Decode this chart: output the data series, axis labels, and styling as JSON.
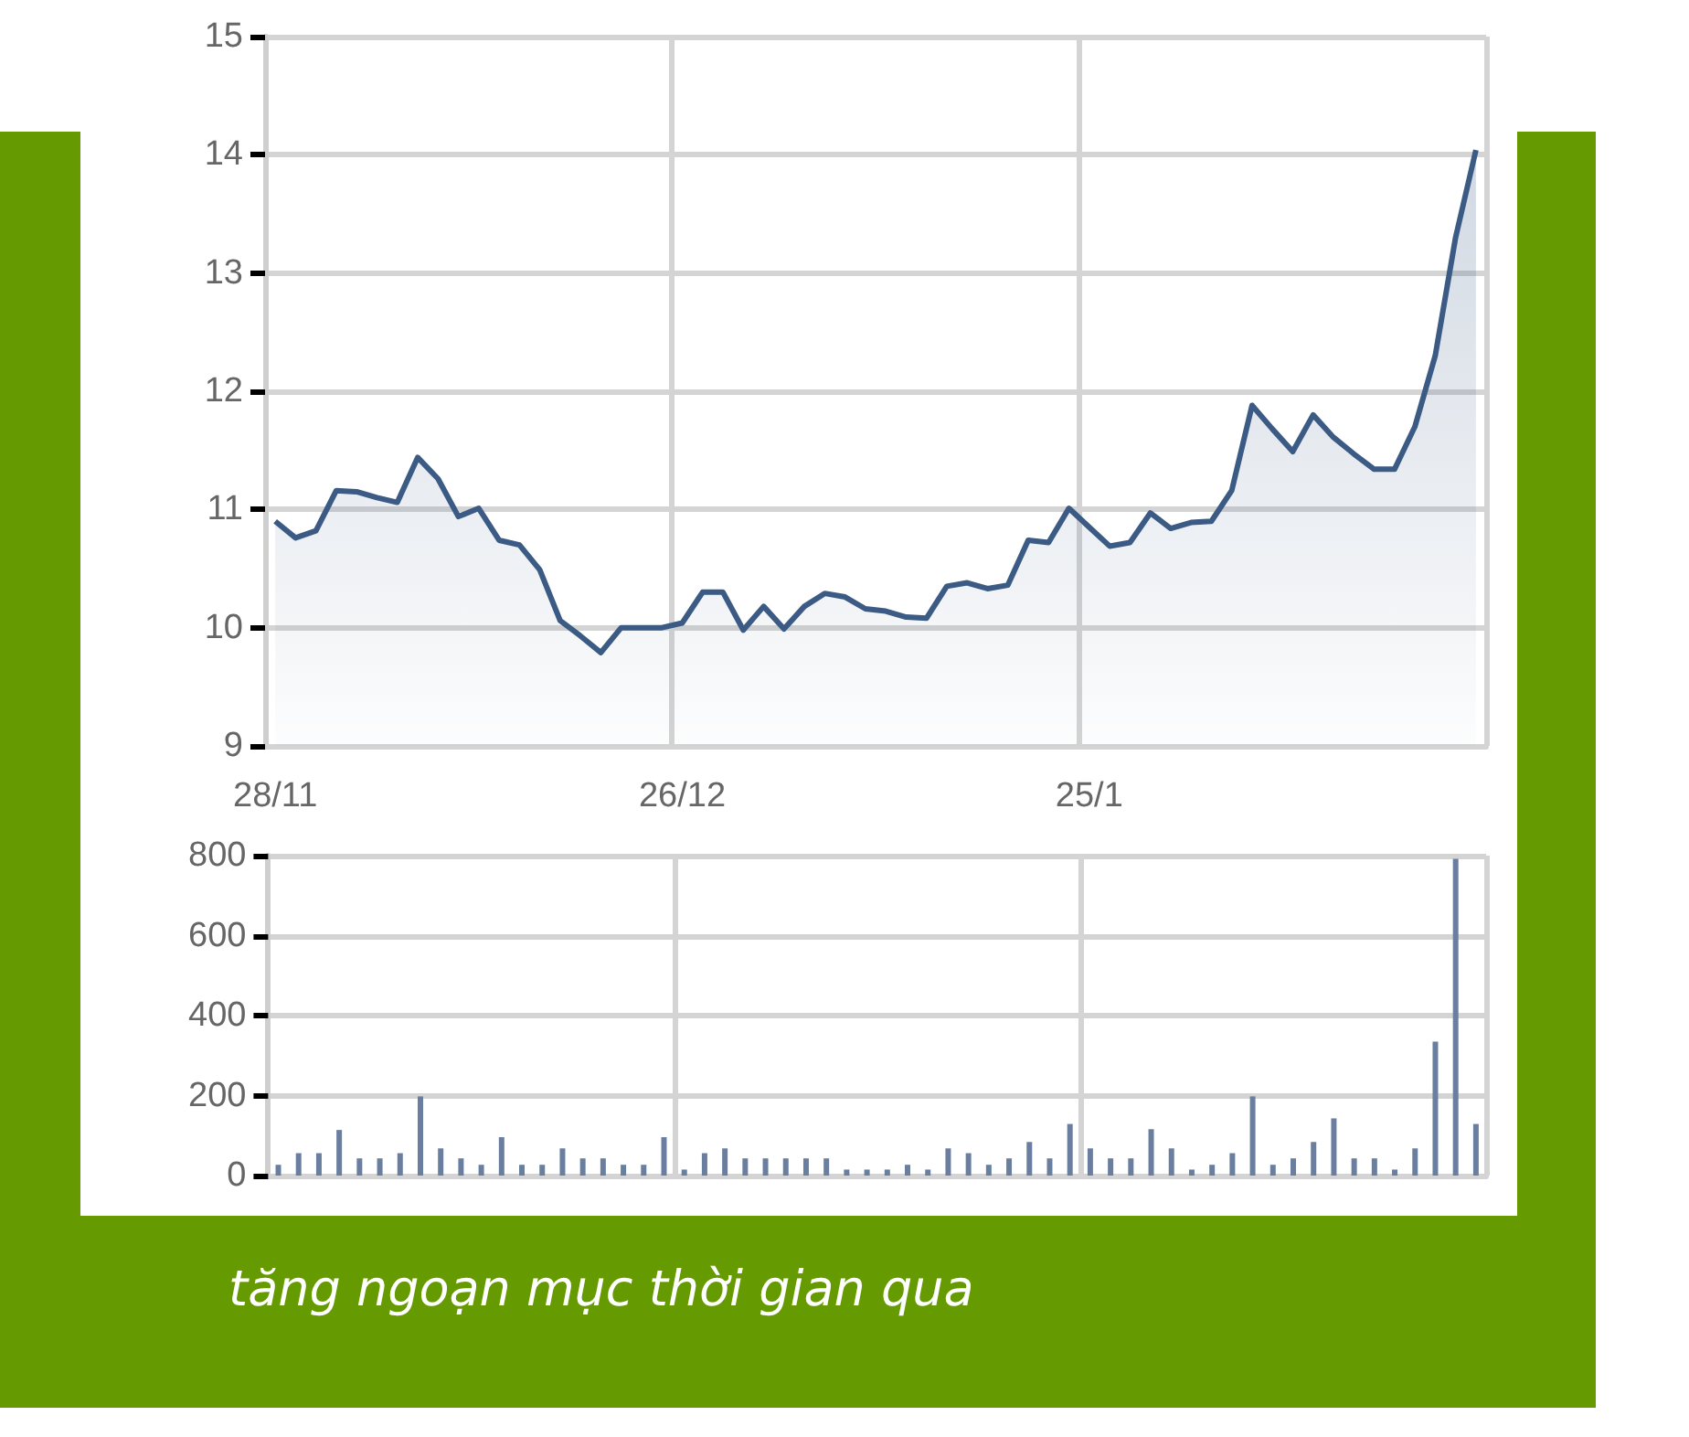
{
  "chart_data": [
    {
      "type": "area",
      "categories": [
        "28/11",
        null,
        null,
        null,
        null,
        null,
        null,
        null,
        null,
        null,
        null,
        null,
        null,
        null,
        null,
        null,
        null,
        null,
        null,
        null,
        "26/12",
        null,
        null,
        null,
        null,
        null,
        null,
        null,
        null,
        null,
        null,
        null,
        null,
        null,
        null,
        null,
        null,
        null,
        null,
        null,
        "25/1",
        null,
        null,
        null,
        null,
        null,
        null,
        null,
        null,
        null,
        null,
        null,
        null,
        null,
        null,
        null,
        null,
        null,
        null,
        null
      ],
      "series": [
        {
          "color": "#3b5b85",
          "values": [
            10.9,
            10.76,
            10.82,
            11.16,
            11.15,
            11.1,
            11.06,
            11.44,
            11.26,
            10.94,
            11.01,
            10.74,
            10.7,
            10.49,
            10.06,
            9.93,
            9.79,
            10.0,
            10.0,
            10.0,
            10.04,
            10.3,
            10.3,
            9.98,
            10.18,
            9.99,
            10.18,
            10.29,
            10.26,
            10.16,
            10.14,
            10.09,
            10.08,
            10.35,
            10.38,
            10.33,
            10.36,
            10.74,
            10.72,
            11.01,
            10.85,
            10.69,
            10.72,
            10.97,
            10.84,
            10.89,
            10.9,
            11.16,
            11.88,
            11.68,
            11.49,
            11.8,
            11.61,
            11.47,
            11.34,
            11.34,
            11.7,
            12.3,
            13.3,
            14.04
          ]
        }
      ],
      "ylim": [
        9,
        15
      ],
      "yticks": [
        9,
        10,
        11,
        12,
        13,
        14,
        15
      ],
      "grid": true,
      "annotations": [
        "tăng ngoạn mục thời gian qua"
      ]
    },
    {
      "type": "bar",
      "categories": [
        null,
        null,
        null,
        null,
        null,
        null,
        null,
        null,
        null,
        null,
        null,
        null,
        null,
        null,
        null,
        null,
        null,
        null,
        null,
        null,
        null,
        null,
        null,
        null,
        null,
        null,
        null,
        null,
        null,
        null,
        null,
        null,
        null,
        null,
        null,
        null,
        null,
        null,
        null,
        null,
        null,
        null,
        null,
        null,
        null,
        null,
        null,
        null,
        null,
        null,
        null,
        null,
        null,
        null,
        null,
        null,
        null,
        null,
        null,
        null
      ],
      "series": [
        {
          "color": "#6a7f9f",
          "values": [
            27,
            56,
            56,
            114,
            43,
            43,
            56,
            198,
            68,
            43,
            27,
            96,
            27,
            27,
            68,
            43,
            43,
            27,
            27,
            96,
            15,
            56,
            68,
            43,
            43,
            43,
            43,
            43,
            15,
            15,
            15,
            27,
            15,
            68,
            56,
            27,
            43,
            84,
            43,
            129,
            68,
            43,
            43,
            116,
            68,
            15,
            27,
            56,
            198,
            27,
            43,
            84,
            143,
            43,
            43,
            15,
            68,
            335,
            792,
            129
          ]
        }
      ],
      "ylim": [
        0,
        800
      ],
      "yticks": [
        0,
        200,
        400,
        600,
        800
      ],
      "grid": true,
      "tick_labels": "y"
    }
  ]
}
